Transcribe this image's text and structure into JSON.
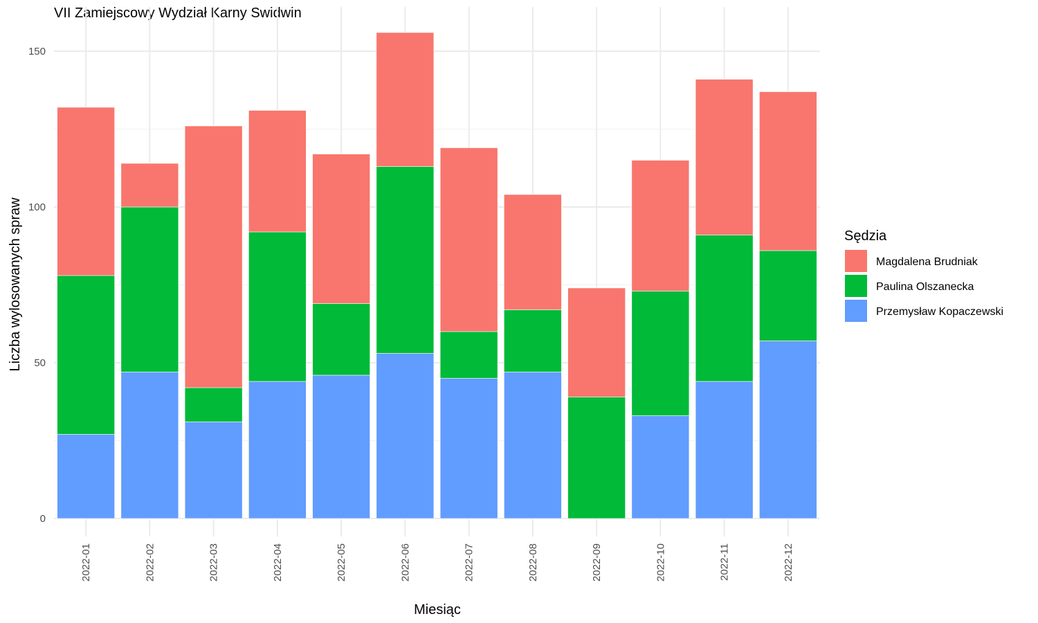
{
  "chart_data": {
    "type": "bar",
    "stacked": true,
    "title": "VII Zamiejscowy Wydział Karny Swidwin",
    "xlabel": "Miesiąc",
    "ylabel": "Liczba wylosowanych spraw",
    "ylim": [
      0,
      157
    ],
    "yticks": [
      0,
      50,
      100,
      150
    ],
    "grid": true,
    "legend": {
      "title": "Sędzia",
      "position": "right"
    },
    "categories": [
      "2022-01",
      "2022-02",
      "2022-03",
      "2022-04",
      "2022-05",
      "2022-06",
      "2022-07",
      "2022-08",
      "2022-09",
      "2022-10",
      "2022-11",
      "2022-12"
    ],
    "series": [
      {
        "name": "Przemysław Kopaczewski",
        "color": "#619CFF",
        "values": [
          27,
          47,
          31,
          44,
          46,
          53,
          45,
          47,
          0,
          33,
          44,
          57
        ]
      },
      {
        "name": "Paulina Olszanecka",
        "color": "#00BA38",
        "values": [
          51,
          53,
          11,
          48,
          23,
          60,
          15,
          20,
          39,
          40,
          47,
          29
        ]
      },
      {
        "name": "Magdalena Brudniak",
        "color": "#F8766D",
        "values": [
          54,
          14,
          84,
          39,
          48,
          43,
          59,
          37,
          35,
          42,
          50,
          51
        ]
      }
    ],
    "legend_order": [
      "Magdalena Brudniak",
      "Paulina Olszanecka",
      "Przemysław Kopaczewski"
    ]
  }
}
